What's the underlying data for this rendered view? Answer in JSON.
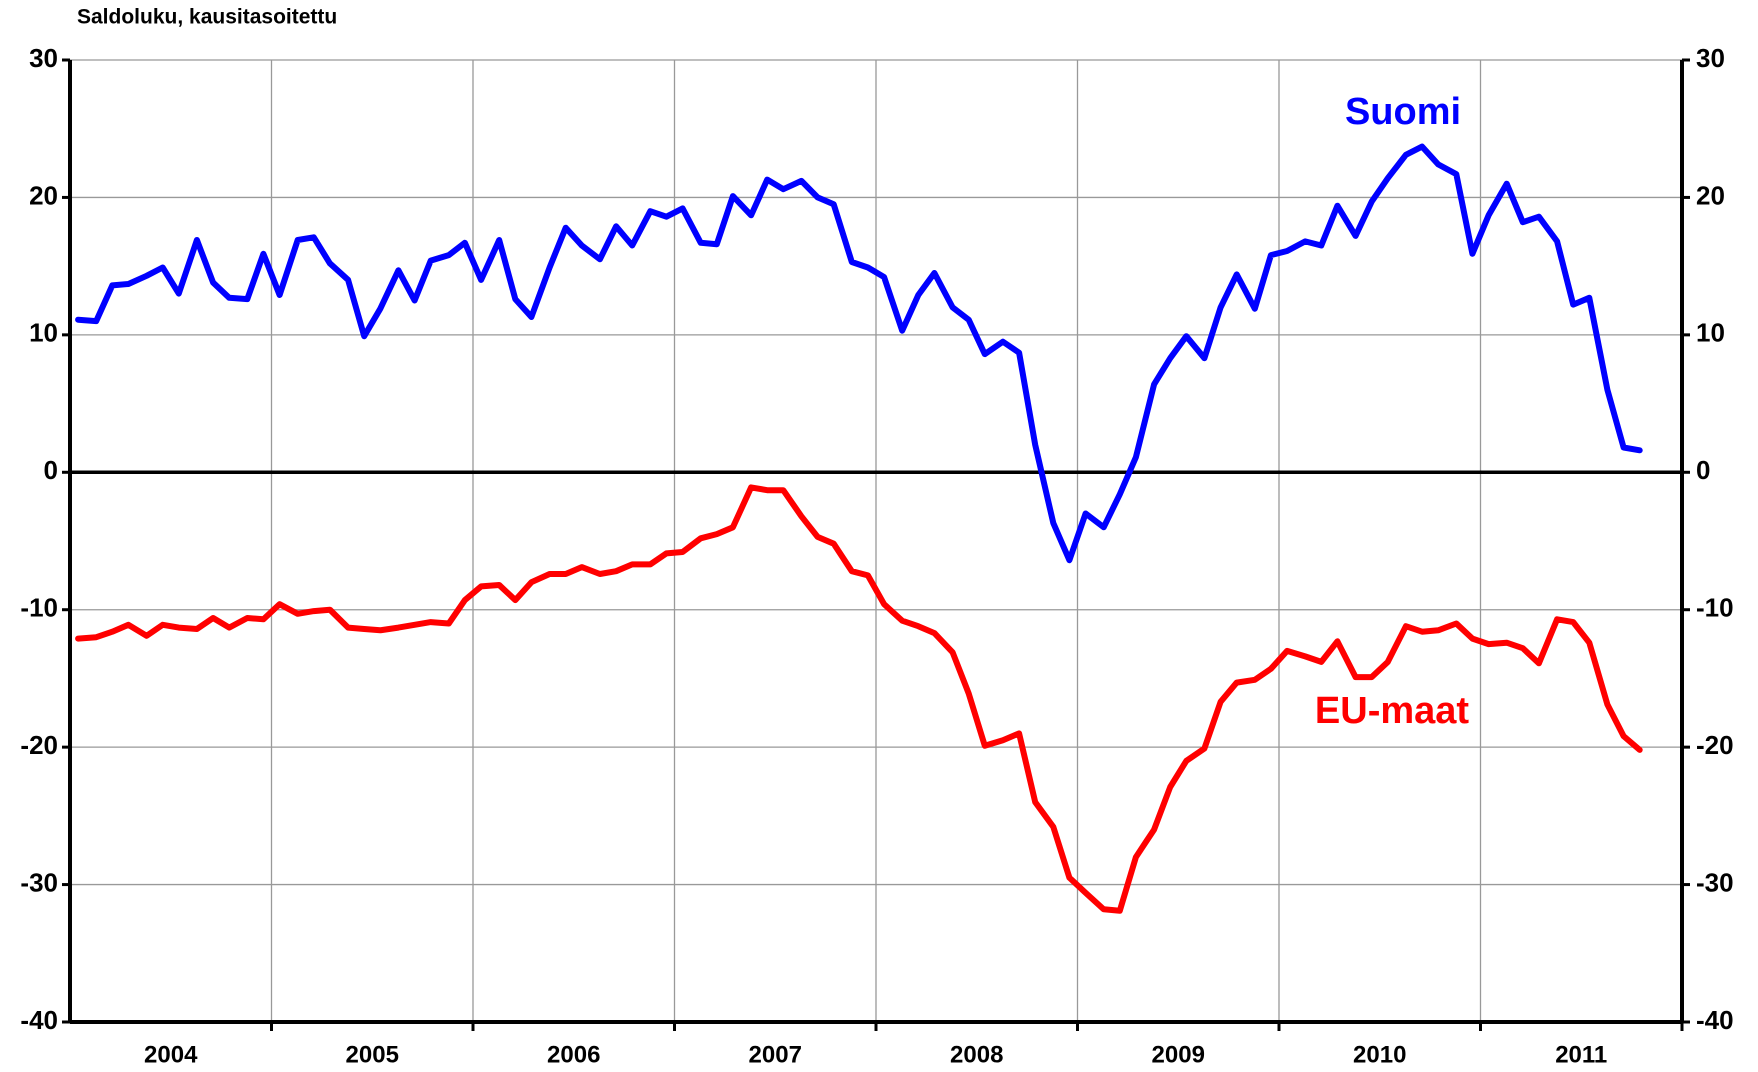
{
  "chart_data": {
    "type": "line",
    "title": "Saldoluku, kausitasoitettu",
    "x": [
      2004.04,
      2004.13,
      2004.21,
      2004.29,
      2004.38,
      2004.46,
      2004.54,
      2004.63,
      2004.71,
      2004.79,
      2004.88,
      2004.96,
      2005.04,
      2005.13,
      2005.21,
      2005.29,
      2005.38,
      2005.46,
      2005.54,
      2005.63,
      2005.71,
      2005.79,
      2005.88,
      2005.96,
      2006.04,
      2006.13,
      2006.21,
      2006.29,
      2006.38,
      2006.46,
      2006.54,
      2006.63,
      2006.71,
      2006.79,
      2006.88,
      2006.96,
      2007.04,
      2007.13,
      2007.21,
      2007.29,
      2007.38,
      2007.46,
      2007.54,
      2007.63,
      2007.71,
      2007.79,
      2007.88,
      2007.96,
      2008.04,
      2008.13,
      2008.21,
      2008.29,
      2008.38,
      2008.46,
      2008.54,
      2008.63,
      2008.71,
      2008.79,
      2008.88,
      2008.96,
      2009.04,
      2009.13,
      2009.21,
      2009.29,
      2009.38,
      2009.46,
      2009.54,
      2009.63,
      2009.71,
      2009.79,
      2009.88,
      2009.96,
      2010.04,
      2010.13,
      2010.21,
      2010.29,
      2010.38,
      2010.46,
      2010.54,
      2010.63,
      2010.71,
      2010.79,
      2010.88,
      2010.96,
      2011.04,
      2011.13,
      2011.21,
      2011.29,
      2011.38,
      2011.46,
      2011.54,
      2011.63,
      2011.71,
      2011.79
    ],
    "series": [
      {
        "name": "Suomi",
        "color": "#0000ff",
        "values": [
          11.1,
          11.0,
          13.6,
          13.7,
          14.3,
          14.9,
          13.0,
          16.9,
          13.8,
          12.7,
          12.6,
          15.9,
          12.9,
          16.9,
          17.1,
          15.2,
          14.0,
          9.9,
          11.9,
          14.7,
          12.5,
          15.4,
          15.8,
          16.7,
          14.0,
          16.9,
          12.6,
          11.3,
          14.9,
          17.8,
          16.5,
          15.5,
          17.9,
          16.5,
          19.0,
          18.6,
          19.2,
          16.7,
          16.6,
          20.1,
          18.7,
          21.3,
          20.6,
          21.2,
          20.0,
          19.5,
          15.3,
          14.9,
          14.2,
          10.3,
          12.9,
          14.5,
          12.0,
          11.1,
          8.6,
          9.5,
          8.7,
          2.0,
          -3.7,
          -6.4,
          -3.0,
          -4.0,
          -1.6,
          1.1,
          6.4,
          8.3,
          9.9,
          8.3,
          12.0,
          14.4,
          11.9,
          15.8,
          16.1,
          16.8,
          16.5,
          19.4,
          17.2,
          19.7,
          21.4,
          23.1,
          23.7,
          22.4,
          21.7,
          15.9,
          18.7,
          21.0,
          18.2,
          18.6,
          16.8,
          12.2,
          12.7,
          6.0,
          1.8,
          1.6
        ]
      },
      {
        "name": "EU-maat",
        "color": "#ff0000",
        "values": [
          -12.1,
          -12.0,
          -11.6,
          -11.1,
          -11.9,
          -11.1,
          -11.3,
          -11.4,
          -10.6,
          -11.3,
          -10.6,
          -10.7,
          -9.6,
          -10.3,
          -10.1,
          -10.0,
          -11.3,
          -11.4,
          -11.5,
          -11.3,
          -11.1,
          -10.9,
          -11.0,
          -9.3,
          -8.3,
          -8.2,
          -9.3,
          -8.0,
          -7.4,
          -7.4,
          -6.9,
          -7.4,
          -7.2,
          -6.7,
          -6.7,
          -5.9,
          -5.8,
          -4.8,
          -4.5,
          -4.0,
          -1.1,
          -1.3,
          -1.3,
          -3.2,
          -4.7,
          -5.2,
          -7.2,
          -7.5,
          -9.6,
          -10.8,
          -11.2,
          -11.7,
          -13.1,
          -16.1,
          -19.9,
          -19.5,
          -19.0,
          -24.0,
          -25.8,
          -29.5,
          -30.6,
          -31.8,
          -31.9,
          -28.0,
          -26.0,
          -22.9,
          -21.0,
          -20.1,
          -16.7,
          -15.3,
          -15.1,
          -14.3,
          -13.0,
          -13.4,
          -13.8,
          -12.3,
          -14.9,
          -14.9,
          -13.8,
          -11.2,
          -11.6,
          -11.5,
          -11.0,
          -12.1,
          -12.5,
          -12.4,
          -12.8,
          -13.9,
          -10.7,
          -10.9,
          -12.4,
          -16.9,
          -19.2,
          -20.2
        ]
      }
    ],
    "xlim": [
      2004,
      2012
    ],
    "xticks": [
      {
        "value": 2004.5,
        "label": "2004"
      },
      {
        "value": 2005.5,
        "label": "2005"
      },
      {
        "value": 2006.5,
        "label": "2006"
      },
      {
        "value": 2007.5,
        "label": "2007"
      },
      {
        "value": 2008.5,
        "label": "2008"
      },
      {
        "value": 2009.5,
        "label": "2009"
      },
      {
        "value": 2010.5,
        "label": "2010"
      },
      {
        "value": 2011.5,
        "label": "2011"
      }
    ],
    "ylim": [
      -40,
      30
    ],
    "yticks": [
      -40,
      -30,
      -20,
      -10,
      0,
      10,
      20,
      30
    ],
    "y2lim": [
      -40,
      30
    ],
    "y2ticks": [
      -40,
      -30,
      -20,
      -10,
      0,
      10,
      20,
      30
    ],
    "grid": true
  }
}
